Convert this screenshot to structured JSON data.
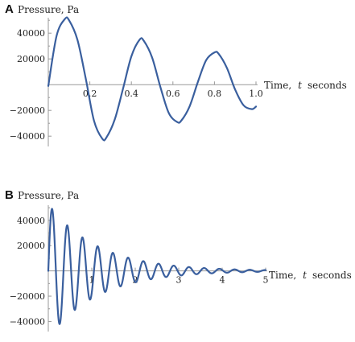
{
  "chart_data": [
    {
      "panel": "A",
      "type": "line",
      "ylabel": "Pressure, Pa",
      "xlabel_text": "Time,",
      "xlabel_var": "t",
      "xlabel_unit": "seconds",
      "xlim": [
        0,
        1.0
      ],
      "ylim": [
        -48000,
        52000
      ],
      "xticks": [
        "0.2",
        "0.4",
        "0.6",
        "0.8",
        "1.0"
      ],
      "xtick_values": [
        0.2,
        0.4,
        0.6,
        0.8,
        1.0
      ],
      "yticks": [
        "40000",
        "20000",
        "−20000",
        "−40000"
      ],
      "ytick_values": [
        40000,
        20000,
        -20000,
        -40000
      ],
      "grid": false,
      "series": [
        {
          "color": "#3a5f9e",
          "x": [
            0.0,
            0.04,
            0.08,
            0.1,
            0.14,
            0.18,
            0.22,
            0.26,
            0.28,
            0.32,
            0.36,
            0.4,
            0.44,
            0.46,
            0.5,
            0.54,
            0.58,
            0.62,
            0.64,
            0.68,
            0.72,
            0.76,
            0.8,
            0.82,
            0.86,
            0.9,
            0.94,
            0.98,
            1.0
          ],
          "y": [
            -1000,
            38000,
            51000,
            50000,
            35000,
            5000,
            -28000,
            -42000,
            -41000,
            -27000,
            -3000,
            22000,
            35000,
            34000,
            21000,
            -2000,
            -22000,
            -29000,
            -28000,
            -17000,
            2000,
            19000,
            25000,
            24000,
            13000,
            -4000,
            -16000,
            -19000,
            -17000
          ]
        }
      ]
    },
    {
      "panel": "B",
      "type": "line",
      "ylabel": "Pressure, Pa",
      "xlabel_text": "Time,",
      "xlabel_var": "t",
      "xlabel_unit": "seconds",
      "xlim": [
        0,
        5
      ],
      "ylim": [
        -48000,
        52000
      ],
      "xticks": [
        "1",
        "2",
        "3",
        "4",
        "5"
      ],
      "xtick_values": [
        1,
        2,
        3,
        4,
        5
      ],
      "yticks": [
        "40000",
        "20000",
        "−20000",
        "−40000"
      ],
      "ytick_values": [
        40000,
        20000,
        -20000,
        -40000
      ],
      "grid": false,
      "series": [
        {
          "color": "#3a5f9e",
          "model": "damped_sine",
          "amplitude": 53000,
          "decay_rate": 0.88,
          "period": 0.35,
          "phase_offset": 0.0,
          "x_range": [
            0,
            5
          ],
          "samples": 500
        }
      ]
    }
  ]
}
